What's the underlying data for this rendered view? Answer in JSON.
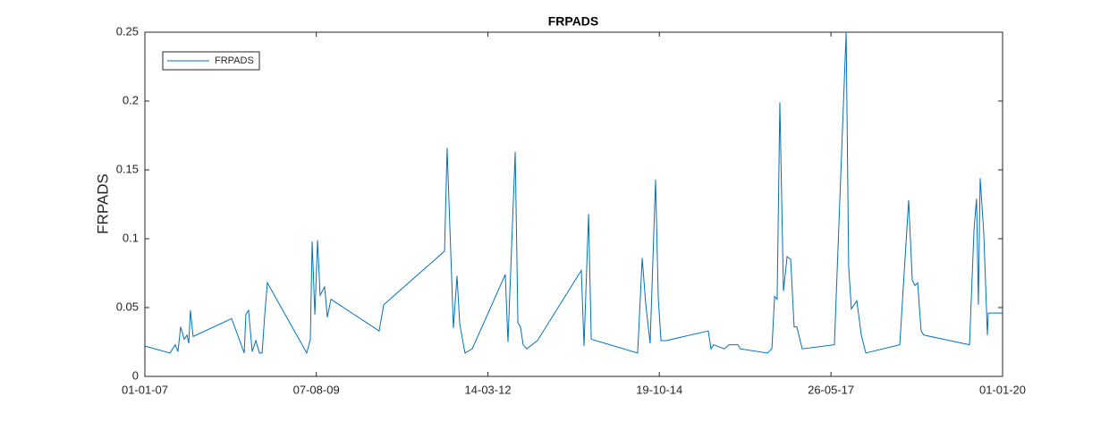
{
  "chart_data": {
    "type": "line",
    "title": "FRPADS",
    "y_label": "FRPADS",
    "x": [
      "2007-01-01",
      "2007-05-20",
      "2007-06-18",
      "2007-07-03",
      "2007-07-18",
      "2007-08-07",
      "2007-08-22",
      "2007-09-01",
      "2007-09-10",
      "2007-09-25",
      "2008-04-25",
      "2008-07-04",
      "2008-07-13",
      "2008-07-28",
      "2008-08-17",
      "2008-09-06",
      "2008-09-26",
      "2008-10-11",
      "2008-10-25",
      "2008-11-09",
      "2009-06-15",
      "2009-07-05",
      "2009-07-15",
      "2009-07-30",
      "2009-08-14",
      "2009-08-28",
      "2009-09-22",
      "2009-10-07",
      "2009-10-27",
      "2010-07-21",
      "2010-08-15",
      "2011-07-18",
      "2011-08-01",
      "2011-09-05",
      "2011-09-25",
      "2011-10-10",
      "2011-11-08",
      "2011-12-18",
      "2012-06-18",
      "2012-07-03",
      "2012-08-12",
      "2012-08-27",
      "2012-09-10",
      "2012-09-25",
      "2012-10-15",
      "2012-12-13",
      "2013-08-13",
      "2013-08-28",
      "2013-09-22",
      "2013-10-07",
      "2014-06-21",
      "2014-07-16",
      "2014-08-05",
      "2014-08-29",
      "2014-09-28",
      "2014-10-13",
      "2014-10-28",
      "2014-11-26",
      "2015-07-17",
      "2015-08-01",
      "2015-08-16",
      "2015-10-14",
      "2015-11-08",
      "2015-12-28",
      "2016-01-11",
      "2016-06-08",
      "2016-07-03",
      "2016-07-18",
      "2016-08-01",
      "2016-08-16",
      "2016-09-05",
      "2016-09-25",
      "2016-10-15",
      "2016-11-03",
      "2016-11-18",
      "2016-12-18",
      "2017-06-14",
      "2017-08-18",
      "2017-09-01",
      "2017-09-16",
      "2017-10-16",
      "2017-11-10",
      "2017-12-05",
      "2018-06-11",
      "2018-07-30",
      "2018-08-19",
      "2018-09-03",
      "2018-09-18",
      "2018-10-07",
      "2018-10-22",
      "2019-07-02",
      "2019-07-27",
      "2019-08-10",
      "2019-08-20",
      "2019-08-30",
      "2019-09-19",
      "2019-10-09",
      "2019-10-14",
      "2020-01-01"
    ],
    "series": [
      {
        "name": "FRPADS",
        "color": "#0072bd",
        "values": [
          0.022,
          0.017,
          0.023,
          0.018,
          0.036,
          0.027,
          0.03,
          0.024,
          0.048,
          0.029,
          0.042,
          0.017,
          0.045,
          0.048,
          0.018,
          0.026,
          0.017,
          0.017,
          0.044,
          0.068,
          0.017,
          0.027,
          0.098,
          0.045,
          0.099,
          0.059,
          0.065,
          0.043,
          0.056,
          0.033,
          0.052,
          0.091,
          0.166,
          0.035,
          0.073,
          0.038,
          0.017,
          0.02,
          0.074,
          0.025,
          0.163,
          0.039,
          0.036,
          0.023,
          0.02,
          0.026,
          0.077,
          0.022,
          0.118,
          0.027,
          0.017,
          0.086,
          0.052,
          0.024,
          0.143,
          0.057,
          0.026,
          0.026,
          0.033,
          0.02,
          0.023,
          0.02,
          0.023,
          0.023,
          0.02,
          0.017,
          0.02,
          0.058,
          0.056,
          0.199,
          0.062,
          0.087,
          0.085,
          0.036,
          0.036,
          0.02,
          0.023,
          0.25,
          0.08,
          0.049,
          0.055,
          0.03,
          0.017,
          0.023,
          0.128,
          0.07,
          0.066,
          0.068,
          0.033,
          0.03,
          0.023,
          0.107,
          0.129,
          0.052,
          0.144,
          0.104,
          0.03,
          0.046,
          0.046
        ]
      }
    ],
    "xlim": [
      "2007-01-01",
      "2020-01-01"
    ],
    "xticks": [
      {
        "value": "2007-01-01",
        "label": "01-01-07"
      },
      {
        "value": "2009-08-07",
        "label": "07-08-09"
      },
      {
        "value": "2012-03-14",
        "label": "14-03-12"
      },
      {
        "value": "2014-10-19",
        "label": "19-10-14"
      },
      {
        "value": "2017-05-26",
        "label": "26-05-17"
      },
      {
        "value": "2020-01-01",
        "label": "01-01-20"
      }
    ],
    "ylim": [
      0,
      0.25
    ],
    "yticks": [
      0,
      0.05,
      0.1,
      0.15,
      0.2,
      0.25
    ],
    "legend": "upper-left",
    "grid": false
  }
}
